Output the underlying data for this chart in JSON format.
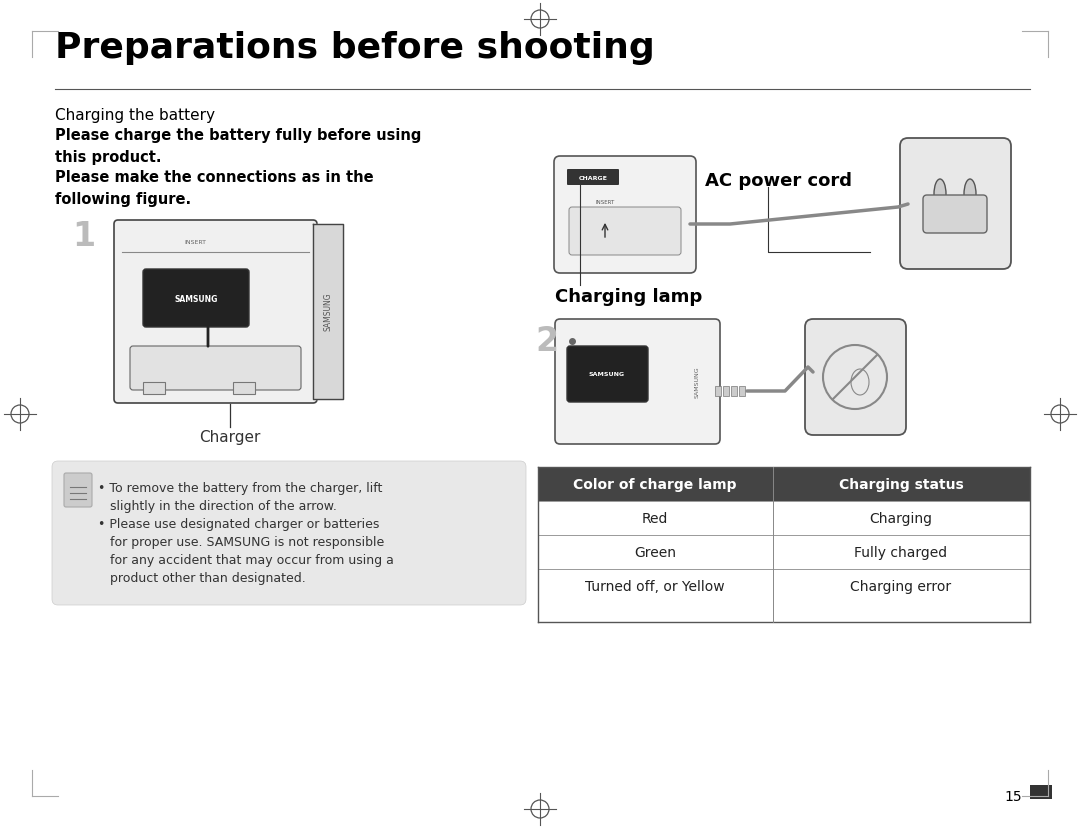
{
  "bg_color": "#ffffff",
  "title": "Preparations before shooting",
  "title_fontsize": 26,
  "title_color": "#000000",
  "section_title": "Charging the battery",
  "section_title_fontsize": 11,
  "bold_text1": "Please charge the battery fully before using\nthis product.",
  "bold_text2": "Please make the connections as in the\nfollowing figure.",
  "bold_fontsize": 10.5,
  "charger_label": "Charger",
  "ac_label": "AC power cord",
  "lamp_label": "Charging lamp",
  "note_line1": "• To remove the battery from the charger, lift",
  "note_line2": "   slightly in the direction of the arrow.",
  "note_line3": "• Please use designated charger or batteries",
  "note_line4": "   for proper use. SAMSUNG is not responsible",
  "note_line5": "   for any accident that may occur from using a",
  "note_line6": "   product other than designated.",
  "note_fontsize": 9,
  "note_bg": "#e8e8e8",
  "table_header": [
    "Color of charge lamp",
    "Charging status"
  ],
  "table_rows": [
    [
      "Red",
      "Charging"
    ],
    [
      "Green",
      "Fully charged"
    ],
    [
      "Turned off, or Yellow",
      "Charging error"
    ]
  ],
  "table_header_bg": "#444444",
  "table_header_fg": "#ffffff",
  "table_row_fg": "#222222",
  "table_border": "#999999",
  "page_num": "15",
  "crosshair_color": "#555555",
  "margin_line_color": "#aaaaaa",
  "figure_width": 10.8,
  "figure_height": 8.29
}
